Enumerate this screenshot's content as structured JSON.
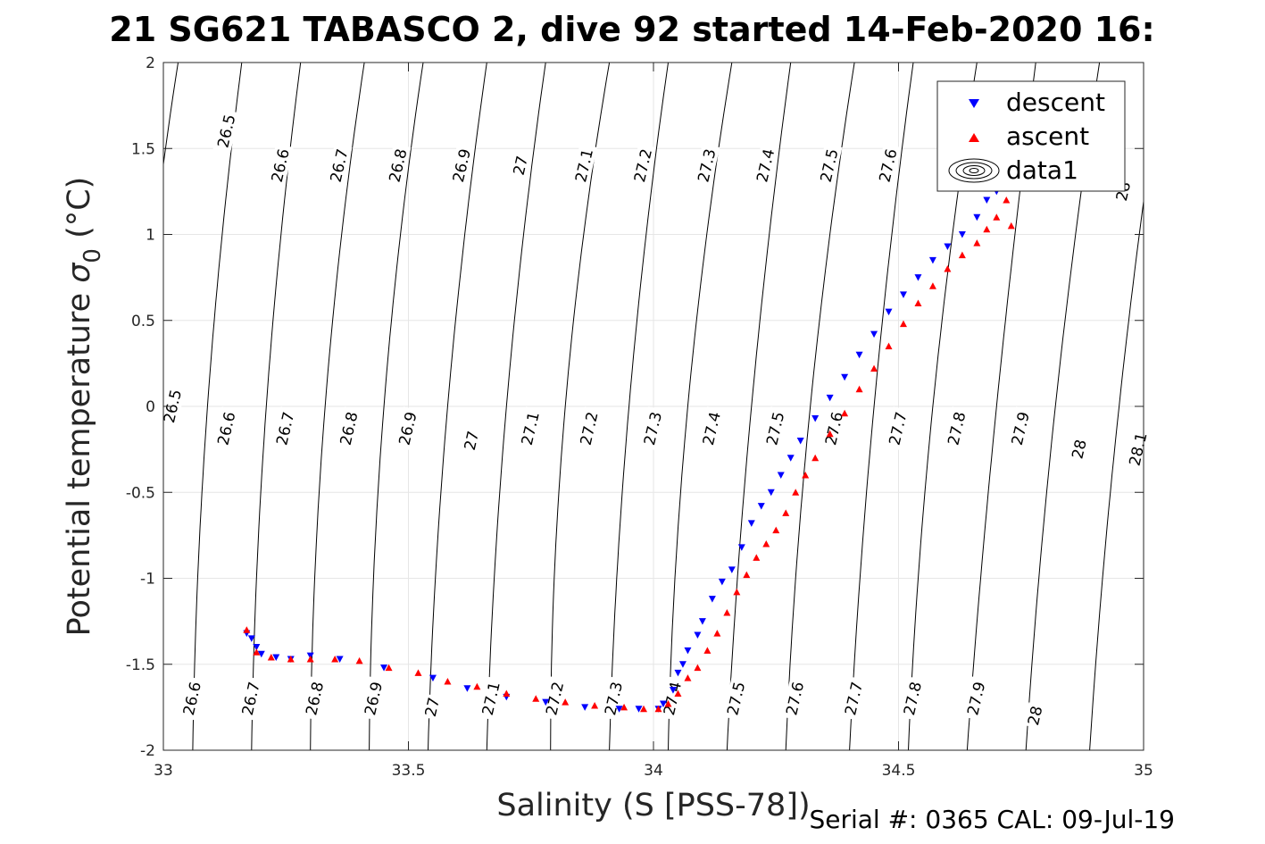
{
  "title": "21 SG621 TABASCO 2, dive 92 started 14-Feb-2020 16:",
  "footer": "Serial #: 0365  CAL: 09-Jul-19",
  "colors": {
    "descent": "#0000ff",
    "ascent": "#ff0000",
    "isopycnal": "#000000",
    "grid": "#e6e6e6"
  },
  "chart_data": {
    "type": "scatter",
    "xlabel": "Salinity (S [PSS-78])",
    "ylabel_main": "Potential temperature ",
    "ylabel_sym": "σ",
    "ylabel_sub": "0",
    "ylabel_unit": " (°C)",
    "xlim": [
      33,
      35
    ],
    "ylim": [
      -2,
      2
    ],
    "xticks": [
      33,
      33.5,
      34,
      34.5,
      35
    ],
    "xtick_labels": [
      "33",
      "33.5",
      "34",
      "34.5",
      "35"
    ],
    "yticks": [
      -2,
      -1.5,
      -1,
      -0.5,
      0,
      0.5,
      1,
      1.5,
      2
    ],
    "ytick_labels": [
      "-2",
      "-1.5",
      "-1",
      "-0.5",
      "0",
      "0.5",
      "1",
      "1.5",
      "2"
    ],
    "grid": true,
    "legend": {
      "position": "top-right",
      "entries": [
        {
          "label": "descent",
          "marker": "triangle-down",
          "color": "#0000ff"
        },
        {
          "label": "ascent",
          "marker": "triangle-up",
          "color": "#ff0000"
        },
        {
          "label": "data1",
          "marker": "contour",
          "color": "#000000"
        }
      ]
    },
    "isopycnals": {
      "levels": [
        "26.5",
        "26.6",
        "26.7",
        "26.8",
        "26.9",
        "27",
        "27.1",
        "27.2",
        "27.3",
        "27.4",
        "27.5",
        "27.6",
        "27.7",
        "27.8",
        "27.9",
        "28",
        "28.1"
      ],
      "crossing_y_m2": [
        32.93,
        33.06,
        33.18,
        33.3,
        33.42,
        33.54,
        33.66,
        33.79,
        33.91,
        34.03,
        34.15,
        34.27,
        34.4,
        34.52,
        34.64,
        34.76,
        34.89
      ],
      "crossing_y_0": [
        32.95,
        33.09,
        33.21,
        33.33,
        33.45,
        33.58,
        33.7,
        33.82,
        33.95,
        34.07,
        34.2,
        34.32,
        34.45,
        34.57,
        34.7,
        34.82,
        34.95
      ],
      "crossing_y_2": [
        33.03,
        33.16,
        33.28,
        33.41,
        33.53,
        33.66,
        33.78,
        33.91,
        34.03,
        34.16,
        34.28,
        34.41,
        34.53,
        34.66,
        34.78,
        34.91,
        35.04
      ],
      "labels_at_y1_4": [
        {
          "level": "26.5",
          "x": 33.13,
          "y": 1.6
        },
        {
          "level": "26.6",
          "x": 33.24,
          "y": 1.4
        },
        {
          "level": "26.7",
          "x": 33.36,
          "y": 1.4
        },
        {
          "level": "26.8",
          "x": 33.48,
          "y": 1.4
        },
        {
          "level": "26.9",
          "x": 33.61,
          "y": 1.4
        },
        {
          "level": "27",
          "x": 33.73,
          "y": 1.4
        },
        {
          "level": "27.1",
          "x": 33.86,
          "y": 1.4
        },
        {
          "level": "27.2",
          "x": 33.98,
          "y": 1.4
        },
        {
          "level": "27.3",
          "x": 34.11,
          "y": 1.4
        },
        {
          "level": "27.4",
          "x": 34.23,
          "y": 1.4
        },
        {
          "level": "27.5",
          "x": 34.36,
          "y": 1.4
        },
        {
          "level": "27.6",
          "x": 34.48,
          "y": 1.4
        },
        {
          "level": "28",
          "x": 34.96,
          "y": 1.25
        }
      ],
      "labels_at_y_m0_2": [
        {
          "level": "26.5",
          "x": 33.02,
          "y": 0.0
        },
        {
          "level": "26.6",
          "x": 33.13,
          "y": -0.13
        },
        {
          "level": "26.7",
          "x": 33.25,
          "y": -0.13
        },
        {
          "level": "26.8",
          "x": 33.38,
          "y": -0.13
        },
        {
          "level": "26.9",
          "x": 33.5,
          "y": -0.13
        },
        {
          "level": "27",
          "x": 33.63,
          "y": -0.2
        },
        {
          "level": "27.1",
          "x": 33.75,
          "y": -0.13
        },
        {
          "level": "27.2",
          "x": 33.87,
          "y": -0.13
        },
        {
          "level": "27.3",
          "x": 34.0,
          "y": -0.13
        },
        {
          "level": "27.4",
          "x": 34.12,
          "y": -0.13
        },
        {
          "level": "27.5",
          "x": 34.25,
          "y": -0.13
        },
        {
          "level": "27.6",
          "x": 34.37,
          "y": -0.13
        },
        {
          "level": "27.7",
          "x": 34.5,
          "y": -0.13
        },
        {
          "level": "27.8",
          "x": 34.62,
          "y": -0.13
        },
        {
          "level": "27.9",
          "x": 34.75,
          "y": -0.13
        },
        {
          "level": "28",
          "x": 34.87,
          "y": -0.25
        },
        {
          "level": "28.1",
          "x": 34.99,
          "y": -0.25
        }
      ],
      "labels_at_y_m1_8": [
        {
          "level": "26.6",
          "x": 33.06,
          "y": -1.7
        },
        {
          "level": "26.7",
          "x": 33.18,
          "y": -1.7
        },
        {
          "level": "26.8",
          "x": 33.31,
          "y": -1.7
        },
        {
          "level": "26.9",
          "x": 33.43,
          "y": -1.7
        },
        {
          "level": "27",
          "x": 33.55,
          "y": -1.75
        },
        {
          "level": "27.1",
          "x": 33.67,
          "y": -1.7
        },
        {
          "level": "27.2",
          "x": 33.8,
          "y": -1.7
        },
        {
          "level": "27.3",
          "x": 33.92,
          "y": -1.7
        },
        {
          "level": "27.4",
          "x": 34.04,
          "y": -1.7
        },
        {
          "level": "27.5",
          "x": 34.17,
          "y": -1.7
        },
        {
          "level": "27.6",
          "x": 34.29,
          "y": -1.7
        },
        {
          "level": "27.7",
          "x": 34.41,
          "y": -1.7
        },
        {
          "level": "27.8",
          "x": 34.53,
          "y": -1.7
        },
        {
          "level": "27.9",
          "x": 34.66,
          "y": -1.7
        },
        {
          "level": "28",
          "x": 34.78,
          "y": -1.8
        }
      ]
    },
    "series": [
      {
        "name": "descent",
        "marker": "triangle-down",
        "color": "#0000ff",
        "x": [
          33.17,
          33.18,
          33.19,
          33.2,
          33.23,
          33.26,
          33.3,
          33.36,
          33.45,
          33.55,
          33.62,
          33.7,
          33.78,
          33.86,
          33.93,
          33.97,
          34.01,
          34.02,
          34.04,
          34.05,
          34.06,
          34.07,
          34.09,
          34.1,
          34.12,
          34.14,
          34.16,
          34.18,
          34.2,
          34.22,
          34.24,
          34.26,
          34.28,
          34.3,
          34.33,
          34.36,
          34.39,
          34.42,
          34.45,
          34.48,
          34.51,
          34.54,
          34.57,
          34.6,
          34.63,
          34.66,
          34.68,
          34.7,
          34.72
        ],
        "y": [
          -1.32,
          -1.35,
          -1.4,
          -1.44,
          -1.46,
          -1.47,
          -1.45,
          -1.47,
          -1.52,
          -1.58,
          -1.64,
          -1.69,
          -1.72,
          -1.75,
          -1.76,
          -1.76,
          -1.76,
          -1.73,
          -1.65,
          -1.55,
          -1.5,
          -1.42,
          -1.33,
          -1.25,
          -1.12,
          -1.02,
          -0.95,
          -0.82,
          -0.68,
          -0.58,
          -0.5,
          -0.4,
          -0.3,
          -0.2,
          -0.07,
          0.05,
          0.17,
          0.3,
          0.42,
          0.55,
          0.65,
          0.75,
          0.85,
          0.93,
          1.0,
          1.1,
          1.2,
          1.25,
          1.3
        ]
      },
      {
        "name": "ascent",
        "marker": "triangle-up",
        "color": "#ff0000",
        "x": [
          33.17,
          33.19,
          33.22,
          33.26,
          33.3,
          33.35,
          33.4,
          33.46,
          33.52,
          33.58,
          33.64,
          33.7,
          33.76,
          33.82,
          33.88,
          33.94,
          33.98,
          34.01,
          34.03,
          34.05,
          34.07,
          34.09,
          34.11,
          34.13,
          34.15,
          34.17,
          34.19,
          34.21,
          34.23,
          34.25,
          34.27,
          34.29,
          34.31,
          34.33,
          34.36,
          34.39,
          34.42,
          34.45,
          34.48,
          34.51,
          34.54,
          34.57,
          34.6,
          34.63,
          34.66,
          34.68,
          34.7,
          34.72,
          34.73
        ],
        "y": [
          -1.3,
          -1.43,
          -1.46,
          -1.47,
          -1.47,
          -1.47,
          -1.48,
          -1.52,
          -1.55,
          -1.6,
          -1.63,
          -1.67,
          -1.7,
          -1.72,
          -1.74,
          -1.75,
          -1.76,
          -1.76,
          -1.73,
          -1.67,
          -1.58,
          -1.52,
          -1.42,
          -1.32,
          -1.2,
          -1.08,
          -0.98,
          -0.88,
          -0.8,
          -0.72,
          -0.62,
          -0.5,
          -0.4,
          -0.3,
          -0.16,
          -0.04,
          0.1,
          0.22,
          0.35,
          0.48,
          0.6,
          0.7,
          0.8,
          0.88,
          0.95,
          1.03,
          1.1,
          1.2,
          1.05
        ]
      }
    ]
  }
}
